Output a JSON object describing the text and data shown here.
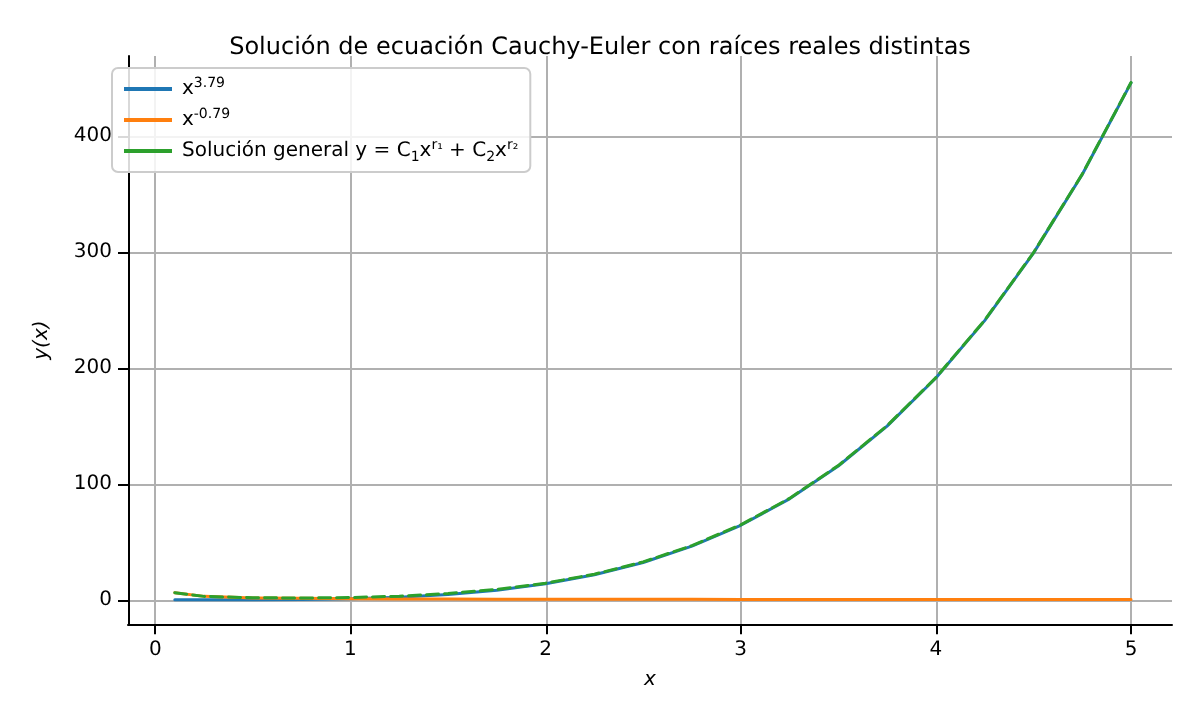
{
  "chart_data": {
    "type": "line",
    "title": "Solución de ecuación Cauchy-Euler con raíces reales distintas",
    "xlabel": "x",
    "ylabel": "y(x)",
    "x": [
      0.1,
      0.25,
      0.5,
      0.75,
      1,
      1.25,
      1.5,
      1.75,
      2,
      2.25,
      2.5,
      2.75,
      3,
      3.25,
      3.5,
      3.75,
      4,
      4.25,
      4.5,
      4.75,
      5
    ],
    "series": [
      {
        "name": "x$^{3.79}$",
        "color": "#1f77b4",
        "values": [
          0.0,
          0.0,
          0.1,
          0.3,
          1,
          2.3,
          4.7,
          8.3,
          13.8,
          21.6,
          32.2,
          46.3,
          64.3,
          87.1,
          115.4,
          149.8,
          191.3,
          240.8,
          299.0,
          366.8,
          445.8
        ]
      },
      {
        "name": "x$^{-0.79}$",
        "color": "#ff7f0e",
        "values": [
          6.2,
          3.0,
          1.7,
          1.3,
          1,
          0.8,
          0.7,
          0.6,
          0.6,
          0.5,
          0.5,
          0.5,
          0.4,
          0.4,
          0.4,
          0.4,
          0.3,
          0.3,
          0.3,
          0.3,
          0.3
        ]
      },
      {
        "name": "Solución general y = C$_{1}$x$^{r₁}$ + C$_{2}$x$^{r₂}$",
        "color": "#2ca02c",
        "line_style": "dashed",
        "values": [
          6.2,
          3.0,
          1.8,
          1.6,
          2,
          3.2,
          5.4,
          9.0,
          14.4,
          22.1,
          32.7,
          46.8,
          64.7,
          87.5,
          115.8,
          150.2,
          191.6,
          241.1,
          299.3,
          367.1,
          446.1
        ]
      }
    ],
    "xlim": [
      -0.14,
      5.21
    ],
    "xticks": [
      0,
      1,
      2,
      3,
      4,
      5
    ],
    "ylim": [
      -21,
      469
    ],
    "yticks": [
      0,
      100,
      200,
      300,
      400
    ],
    "grid": true,
    "legend": "top left",
    "line_style": "solid",
    "marker": "none"
  }
}
